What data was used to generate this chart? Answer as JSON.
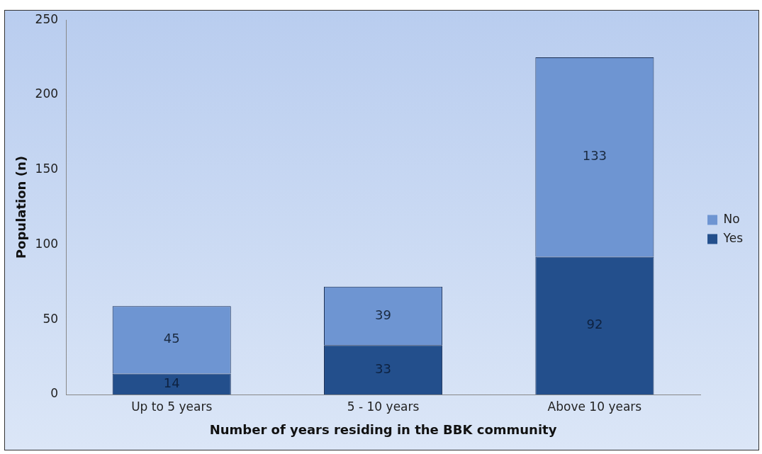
{
  "chart_data": {
    "type": "bar",
    "stacked": true,
    "xlabel": "Number of years residing in the BBK community",
    "ylabel": "Population (n)",
    "categories": [
      "Up to 5 years",
      "5 - 10 years",
      "Above 10 years"
    ],
    "series": [
      {
        "name": "Yes",
        "color": "#234f8c",
        "values": [
          14,
          33,
          92
        ]
      },
      {
        "name": "No",
        "color": "#6e95d2",
        "values": [
          45,
          39,
          133
        ]
      }
    ],
    "ylim": [
      0,
      250
    ],
    "yticks": [
      0,
      50,
      100,
      150,
      200,
      250
    ],
    "grid": false,
    "legend": "right",
    "data_labels": true
  }
}
